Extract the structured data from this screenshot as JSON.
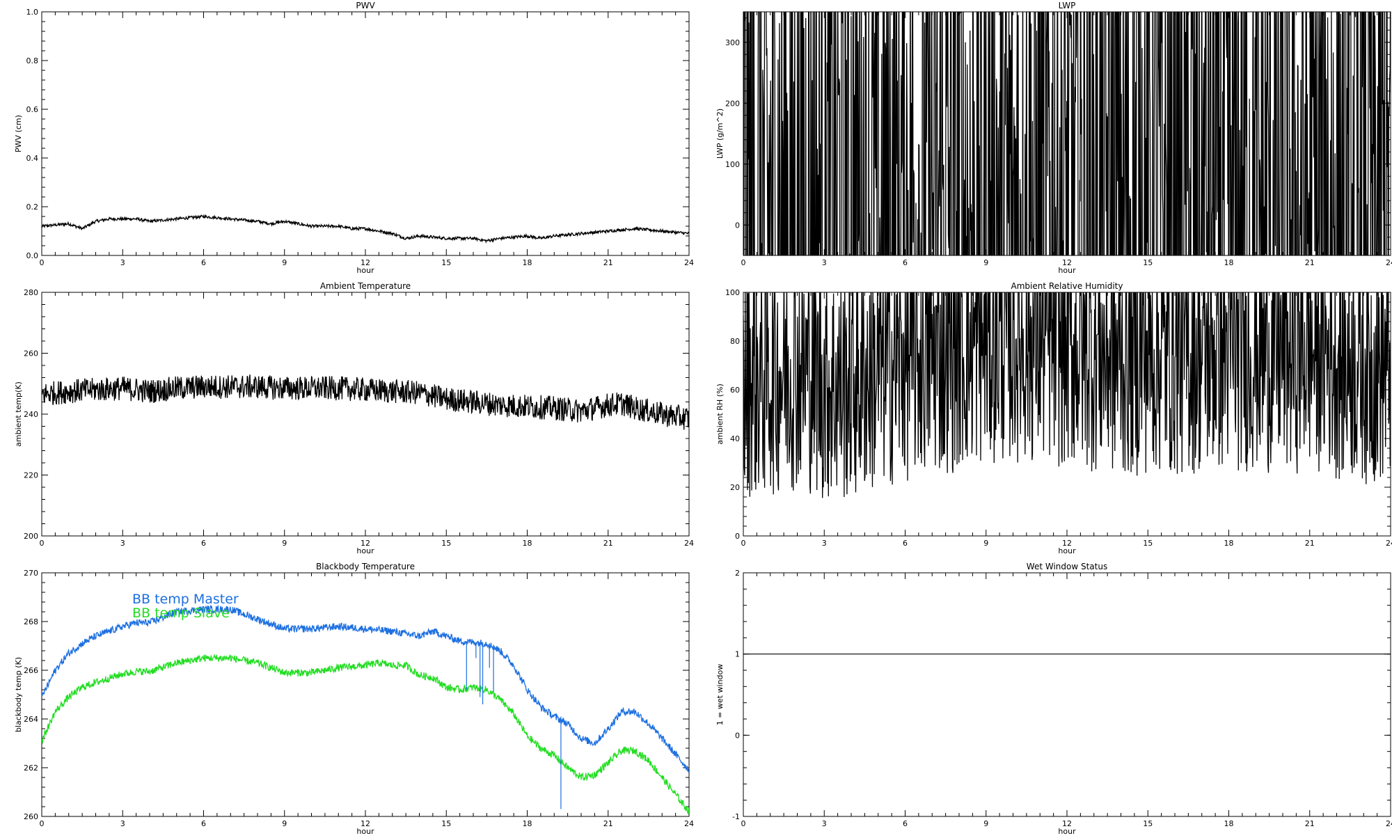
{
  "chart_data": [
    {
      "id": "pwv",
      "type": "line",
      "title": "PWV",
      "xlabel": "hour",
      "ylabel": "PWV (cm)",
      "xlim": [
        0,
        24
      ],
      "ylim": [
        0,
        1
      ],
      "x_ticks": [
        "0",
        "3",
        "6",
        "9",
        "12",
        "15",
        "18",
        "21",
        "24"
      ],
      "y_ticks": [
        "0.0",
        "0.2",
        "0.4",
        "0.6",
        "0.8",
        "1.0"
      ],
      "series": [
        {
          "color": "#000000",
          "noise": 0.006,
          "x": [
            0,
            1,
            1.5,
            2,
            2.5,
            3,
            3.5,
            4,
            5,
            6,
            7,
            8,
            8.5,
            9,
            10,
            10.5,
            11,
            11.5,
            12,
            12.5,
            13,
            13.5,
            14,
            15,
            16,
            16.5,
            17,
            18,
            18.5,
            19,
            20,
            21,
            22,
            23,
            24
          ],
          "y": [
            0.12,
            0.13,
            0.11,
            0.14,
            0.15,
            0.15,
            0.15,
            0.14,
            0.15,
            0.16,
            0.15,
            0.14,
            0.13,
            0.14,
            0.12,
            0.12,
            0.12,
            0.11,
            0.11,
            0.1,
            0.09,
            0.07,
            0.08,
            0.07,
            0.07,
            0.06,
            0.07,
            0.08,
            0.07,
            0.08,
            0.09,
            0.1,
            0.11,
            0.1,
            0.09
          ]
        }
      ]
    },
    {
      "id": "lwp",
      "type": "line",
      "title": "LWP",
      "xlabel": "hour",
      "ylabel": "LWP (g/m^2)",
      "xlim": [
        0,
        24
      ],
      "ylim": [
        -50,
        350
      ],
      "x_ticks": [
        "0",
        "3",
        "6",
        "9",
        "12",
        "15",
        "18",
        "21",
        "24"
      ],
      "y_ticks": [
        "0",
        "100",
        "200",
        "300"
      ],
      "series": [
        {
          "color": "#000000",
          "noise": 1.6,
          "x": [
            0,
            2,
            4,
            6,
            8,
            10,
            11,
            12,
            13,
            14,
            16,
            18,
            20,
            22,
            24
          ],
          "y": [
            22,
            20,
            19,
            20,
            19,
            18,
            20,
            23,
            25,
            25,
            24,
            23,
            22,
            22,
            22
          ]
        }
      ]
    },
    {
      "id": "ambient-temp",
      "type": "line",
      "title": "Ambient Temperature",
      "xlabel": "hour",
      "ylabel": "ambient temp(K)",
      "xlim": [
        0,
        24
      ],
      "ylim": [
        200,
        280
      ],
      "x_ticks": [
        "0",
        "3",
        "6",
        "9",
        "12",
        "15",
        "18",
        "21",
        "24"
      ],
      "y_ticks": [
        "200",
        "220",
        "240",
        "260",
        "280"
      ],
      "series": [
        {
          "color": "#000000",
          "noise": 0.05,
          "x": [
            0,
            1,
            2,
            3,
            3.5,
            4,
            5,
            6,
            7,
            8,
            9,
            10,
            11,
            12,
            13,
            14,
            14.5,
            15,
            16,
            17,
            18,
            19,
            19.5,
            20,
            21,
            21.5,
            22,
            23,
            24
          ],
          "y": [
            246.5,
            247.5,
            248,
            248.5,
            248,
            247.5,
            248.5,
            249,
            249,
            249,
            248.5,
            248.5,
            248.5,
            248,
            247.5,
            247,
            246,
            245,
            244,
            243,
            242.5,
            242,
            241.5,
            241,
            243,
            243.5,
            242,
            240,
            238.5
          ]
        }
      ]
    },
    {
      "id": "ambient-rh",
      "type": "line",
      "title": "Ambient Relative Humidity",
      "xlabel": "hour",
      "ylabel": "ambient RH (%)",
      "xlim": [
        0,
        24
      ],
      "ylim": [
        0,
        100
      ],
      "x_ticks": [
        "0",
        "3",
        "6",
        "9",
        "12",
        "15",
        "18",
        "21",
        "24"
      ],
      "y_ticks": [
        "0",
        "20",
        "40",
        "60",
        "80",
        "100"
      ],
      "series": [
        {
          "color": "#000000",
          "noise": 0.5,
          "x": [
            0,
            0.3,
            0.5,
            1,
            2,
            2.5,
            3,
            3.5,
            4,
            4.5,
            5,
            6,
            7,
            8,
            9,
            10,
            11,
            12,
            13,
            14,
            15,
            16,
            17,
            18,
            19,
            20,
            21,
            21.5,
            22,
            23,
            24
          ],
          "y": [
            60,
            67,
            64,
            66,
            69,
            67,
            63,
            62,
            64,
            65,
            68,
            72,
            74,
            76,
            79,
            80,
            79,
            77,
            76,
            73,
            75,
            74,
            75,
            76,
            76,
            75,
            76,
            76,
            73,
            71,
            70
          ]
        }
      ]
    },
    {
      "id": "bb-temp",
      "type": "line",
      "title": "Blackbody Temperature",
      "xlabel": "hour",
      "ylabel": "blackbody temp (K)",
      "xlim": [
        0,
        24
      ],
      "ylim": [
        260,
        270
      ],
      "x_ticks": [
        "0",
        "3",
        "6",
        "9",
        "12",
        "15",
        "18",
        "21",
        "24"
      ],
      "y_ticks": [
        "260",
        "262",
        "264",
        "266",
        "268",
        "270"
      ],
      "legend": {
        "position": "top-left",
        "entries": [
          "BB temp Master",
          "BB temp Slave"
        ]
      },
      "series": [
        {
          "name": "BB temp Master",
          "color": "#1c6fe0",
          "noise": 0.015,
          "x": [
            0,
            0.5,
            1,
            1.5,
            2,
            3,
            3.5,
            4,
            5,
            6,
            7,
            8,
            9,
            10,
            11,
            12,
            13,
            14,
            14.5,
            15,
            15.5,
            16,
            16.5,
            17,
            17.5,
            18,
            18.5,
            19,
            19.5,
            20,
            20.5,
            21,
            21.5,
            22,
            22.5,
            23,
            24
          ],
          "y": [
            264.9,
            266,
            266.7,
            267.1,
            267.4,
            267.8,
            267.95,
            267.95,
            268.4,
            268.5,
            268.5,
            268.1,
            267.7,
            267.7,
            267.8,
            267.7,
            267.6,
            267.4,
            267.6,
            267.4,
            267.2,
            267.15,
            267.1,
            266.8,
            266.2,
            265.2,
            264.5,
            264.1,
            263.8,
            263.2,
            263,
            263.6,
            264.3,
            264.3,
            263.8,
            263.2,
            261.9
          ]
        },
        {
          "name": "BB temp Slave",
          "color": "#22dd22",
          "noise": 0.015,
          "x": [
            0,
            0.5,
            1,
            1.5,
            2,
            3,
            3.5,
            4,
            5,
            6,
            7,
            8,
            9,
            10,
            11,
            12,
            12.5,
            13,
            13.5,
            14,
            14.5,
            15,
            15.5,
            16,
            16.5,
            17,
            17.5,
            18,
            18.5,
            19,
            19.5,
            20,
            20.5,
            21,
            21.5,
            22,
            22.5,
            23,
            24
          ],
          "y": [
            263.1,
            264.3,
            264.9,
            265.3,
            265.5,
            265.85,
            265.95,
            265.95,
            266.3,
            266.5,
            266.5,
            266.3,
            265.9,
            265.9,
            266.1,
            266.2,
            266.3,
            266.2,
            266.2,
            265.8,
            265.7,
            265.3,
            265.2,
            265.3,
            265.2,
            264.8,
            264.2,
            263.3,
            262.8,
            262.5,
            262,
            261.6,
            261.7,
            262.2,
            262.7,
            262.7,
            262.3,
            261.6,
            260.2
          ]
        }
      ],
      "spikes": [
        {
          "x": 15.75,
          "y_top": 267.15,
          "y_bottom": 265.2,
          "color": "#1c6fe0"
        },
        {
          "x": 16.1,
          "y_top": 267.15,
          "y_bottom": 266.5,
          "color": "#1c6fe0"
        },
        {
          "x": 16.25,
          "y_top": 267.15,
          "y_bottom": 264.9,
          "color": "#1c6fe0"
        },
        {
          "x": 16.35,
          "y_top": 267.15,
          "y_bottom": 264.6,
          "color": "#1c6fe0"
        },
        {
          "x": 16.6,
          "y_top": 267.1,
          "y_bottom": 266.1,
          "color": "#1c6fe0"
        },
        {
          "x": 16.75,
          "y_top": 267.05,
          "y_bottom": 265.1,
          "color": "#1c6fe0"
        },
        {
          "x": 19.25,
          "y_top": 264.1,
          "y_bottom": 260.3,
          "color": "#1c6fe0"
        }
      ]
    },
    {
      "id": "wet-window",
      "type": "line",
      "title": "Wet Window Status",
      "xlabel": "hour",
      "ylabel": "1 = wet window",
      "xlim": [
        0,
        24
      ],
      "ylim": [
        -1,
        2
      ],
      "x_ticks": [
        "0",
        "3",
        "6",
        "9",
        "12",
        "15",
        "18",
        "21",
        "24"
      ],
      "y_ticks": [
        "-1",
        "0",
        "1",
        "2"
      ],
      "series": [
        {
          "color": "#000000",
          "noise": 0,
          "x": [
            0,
            24
          ],
          "y": [
            1,
            1
          ]
        }
      ]
    }
  ]
}
